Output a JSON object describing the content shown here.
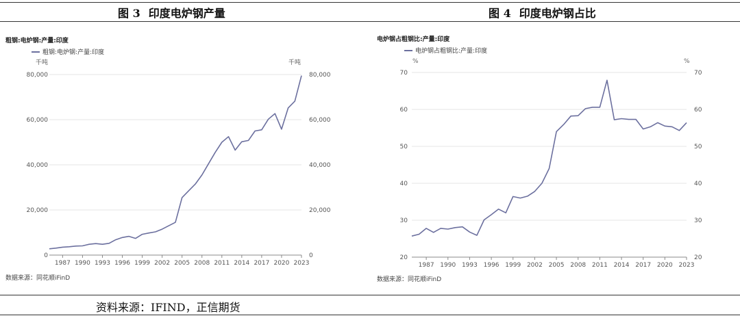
{
  "page": {
    "footer_source": "资料来源：IFIND，正信期货"
  },
  "figures": [
    {
      "number": "图 3",
      "title": "印度电炉钢产量",
      "chart_title": "粗钢:电炉钢:产量:印度",
      "legend": "粗钢:电炉钢:产量:印度",
      "unit_left": "千吨",
      "unit_right": "千吨",
      "source_note": "数据来源：同花顺iFinD"
    },
    {
      "number": "图 4",
      "title": "印度电炉钢占比",
      "chart_title": "电炉钢占粗钢比:产量:印度",
      "legend": "电炉钢占粗钢比:产量:印度",
      "unit_left": "%",
      "unit_right": "%",
      "source_note": "数据来源：同花顺iFinD"
    }
  ],
  "chart_data": [
    {
      "type": "line",
      "title": "粗钢:电炉钢:产量:印度",
      "xlabel": "",
      "ylabel": "千吨",
      "x": [
        1985,
        1986,
        1987,
        1988,
        1989,
        1990,
        1991,
        1992,
        1993,
        1994,
        1995,
        1996,
        1997,
        1998,
        1999,
        2000,
        2001,
        2002,
        2003,
        2004,
        2005,
        2006,
        2007,
        2008,
        2009,
        2010,
        2011,
        2012,
        2013,
        2014,
        2015,
        2016,
        2017,
        2018,
        2019,
        2020,
        2021,
        2022,
        2023
      ],
      "x_ticks": [
        1987,
        1990,
        1993,
        1996,
        1999,
        2002,
        2005,
        2008,
        2011,
        2014,
        2017,
        2020,
        2023
      ],
      "ylim": [
        0,
        80000
      ],
      "y_ticks": [
        0,
        20000,
        40000,
        60000,
        80000
      ],
      "y_tick_labels": [
        "0",
        "20,000",
        "40,000",
        "60,000",
        "80,000"
      ],
      "grid": true,
      "legend_position": "top-left",
      "color": "#6b6f9e",
      "series": [
        {
          "name": "粗钢:电炉钢:产量:印度",
          "values": [
            2800,
            3100,
            3500,
            3700,
            4000,
            4100,
            4800,
            5100,
            4800,
            5200,
            6800,
            7800,
            8300,
            7400,
            9200,
            9800,
            10300,
            11500,
            13000,
            14500,
            25500,
            28500,
            31500,
            35500,
            40500,
            45500,
            50000,
            52500,
            46500,
            50200,
            50800,
            55000,
            55500,
            60200,
            62700,
            55800,
            65200,
            68200,
            79500
          ]
        }
      ]
    },
    {
      "type": "line",
      "title": "电炉钢占粗钢比:产量:印度",
      "xlabel": "",
      "ylabel": "%",
      "x": [
        1985,
        1986,
        1987,
        1988,
        1989,
        1990,
        1991,
        1992,
        1993,
        1994,
        1995,
        1996,
        1997,
        1998,
        1999,
        2000,
        2001,
        2002,
        2003,
        2004,
        2005,
        2006,
        2007,
        2008,
        2009,
        2010,
        2011,
        2012,
        2013,
        2014,
        2015,
        2016,
        2017,
        2018,
        2019,
        2020,
        2021,
        2022,
        2023
      ],
      "x_ticks": [
        1987,
        1990,
        1993,
        1996,
        1999,
        2002,
        2005,
        2008,
        2011,
        2014,
        2017,
        2020,
        2023
      ],
      "ylim": [
        20,
        70
      ],
      "y_ticks": [
        20,
        30,
        40,
        50,
        60,
        70
      ],
      "y_tick_labels": [
        "20",
        "30",
        "40",
        "50",
        "60",
        "70"
      ],
      "grid": true,
      "legend_position": "top-left",
      "color": "#6b6f9e",
      "series": [
        {
          "name": "电炉钢占粗钢比:产量:印度",
          "values": [
            25.7,
            26.2,
            27.8,
            26.7,
            27.8,
            27.6,
            28.0,
            28.2,
            26.8,
            25.9,
            30.1,
            31.5,
            33.0,
            32.0,
            36.4,
            36.0,
            36.5,
            37.8,
            40.0,
            44.0,
            54.0,
            55.9,
            58.2,
            58.3,
            60.2,
            60.6,
            60.6,
            67.9,
            57.2,
            57.5,
            57.3,
            57.3,
            54.7,
            55.3,
            56.4,
            55.5,
            55.3,
            54.3,
            56.4
          ]
        }
      ]
    }
  ]
}
